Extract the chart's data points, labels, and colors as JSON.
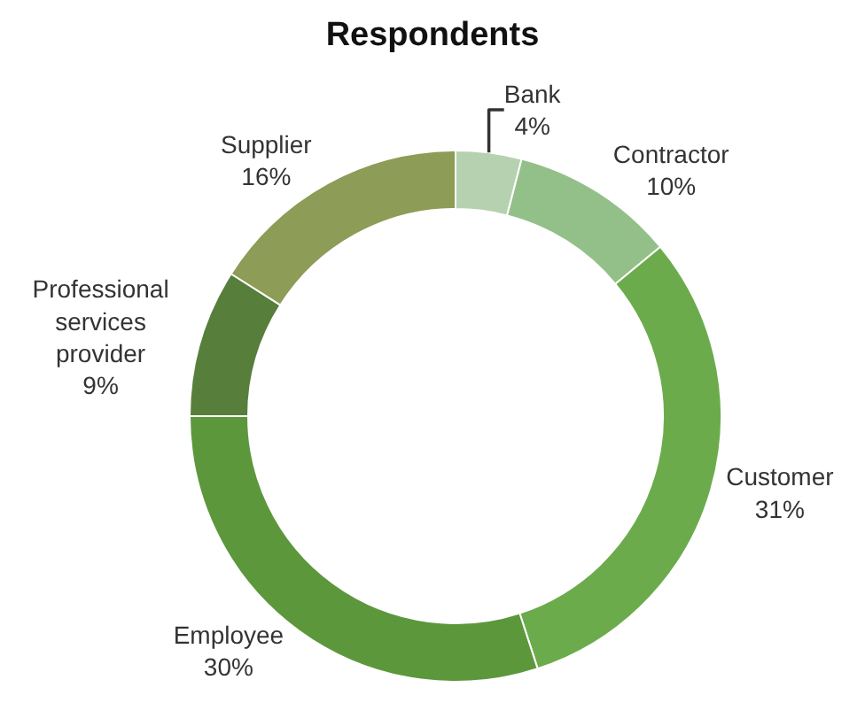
{
  "chart_data": {
    "type": "donut",
    "title": "Respondents",
    "categories": [
      "Bank",
      "Contractor",
      "Customer",
      "Employee",
      "Professional services provider",
      "Supplier"
    ],
    "values": [
      4,
      10,
      31,
      30,
      9,
      16
    ],
    "colors": [
      "#b6d1b0",
      "#93c089",
      "#6cab4c",
      "#5c973c",
      "#577f3b",
      "#8d9c56"
    ],
    "value_labels": [
      "4%",
      "10%",
      "31%",
      "30%",
      "9%",
      "16%"
    ],
    "legend": false
  }
}
